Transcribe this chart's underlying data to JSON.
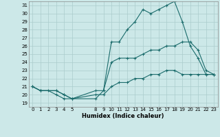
{
  "title": "",
  "xlabel": "Humidex (Indice chaleur)",
  "bg_color": "#cce8e8",
  "grid_color": "#aacccc",
  "line_color": "#1a6b6b",
  "xlim": [
    -0.5,
    23.5
  ],
  "ylim": [
    18.5,
    31.5
  ],
  "xticks": [
    0,
    1,
    2,
    3,
    4,
    5,
    8,
    9,
    10,
    11,
    12,
    13,
    14,
    15,
    16,
    17,
    18,
    19,
    20,
    21,
    22,
    23
  ],
  "yticks": [
    19,
    20,
    21,
    22,
    23,
    24,
    25,
    26,
    27,
    28,
    29,
    30,
    31
  ],
  "line1_x": [
    0,
    1,
    2,
    3,
    4,
    5,
    8,
    9,
    10,
    11,
    12,
    13,
    14,
    15,
    16,
    17,
    18,
    19,
    20,
    21,
    22,
    23
  ],
  "line1_y": [
    21.0,
    20.5,
    20.5,
    20.0,
    19.5,
    19.5,
    19.5,
    20.5,
    26.5,
    26.5,
    28.0,
    29.0,
    30.5,
    30.0,
    30.5,
    31.0,
    31.5,
    29.0,
    26.0,
    24.5,
    22.5,
    22.5
  ],
  "line2_x": [
    0,
    1,
    3,
    4,
    5,
    8,
    9,
    10,
    11,
    12,
    13,
    14,
    15,
    16,
    17,
    18,
    19,
    20,
    21,
    22,
    23
  ],
  "line2_y": [
    21.0,
    20.5,
    20.5,
    20.0,
    19.5,
    20.5,
    20.5,
    24.0,
    24.5,
    24.5,
    24.5,
    25.0,
    25.5,
    25.5,
    26.0,
    26.0,
    26.5,
    26.5,
    25.5,
    23.0,
    22.5
  ],
  "line3_x": [
    0,
    1,
    3,
    4,
    5,
    8,
    9,
    10,
    11,
    12,
    13,
    14,
    15,
    16,
    17,
    18,
    19,
    20,
    21,
    22,
    23
  ],
  "line3_y": [
    21.0,
    20.5,
    20.5,
    20.0,
    19.5,
    20.0,
    20.0,
    21.0,
    21.5,
    21.5,
    22.0,
    22.0,
    22.5,
    22.5,
    23.0,
    23.0,
    22.5,
    22.5,
    22.5,
    22.5,
    22.5
  ]
}
